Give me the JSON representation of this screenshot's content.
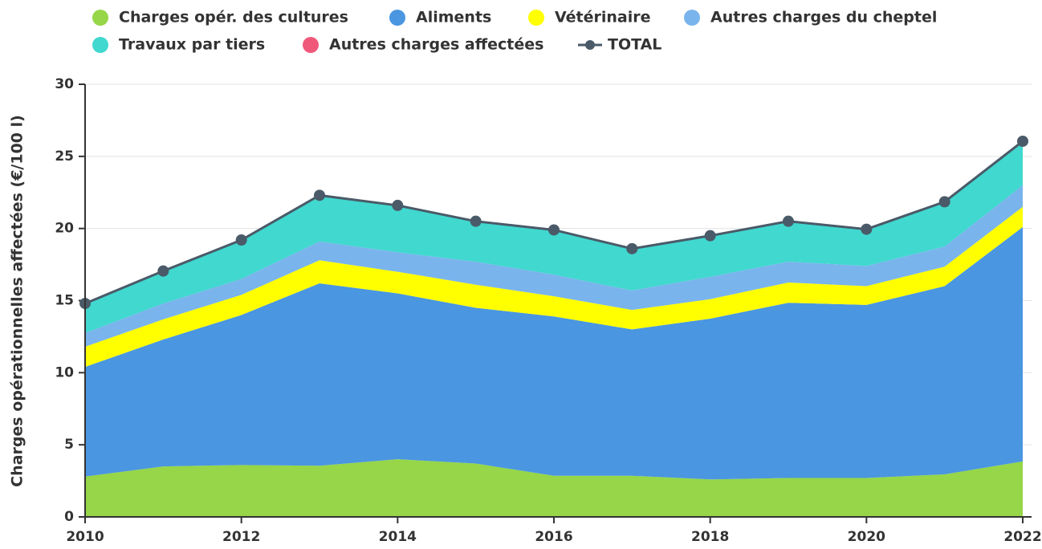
{
  "chart_data": {
    "type": "stacked_area",
    "y_label": "Charges opérationnelles affectées (€/100 l)",
    "x": [
      2010,
      2011,
      2012,
      2013,
      2014,
      2015,
      2016,
      2017,
      2018,
      2019,
      2020,
      2021,
      2022
    ],
    "xlim": [
      2010,
      2022
    ],
    "xticks": [
      2010,
      2012,
      2014,
      2016,
      2018,
      2020,
      2022
    ],
    "ylim": [
      0,
      30
    ],
    "yticks": [
      0,
      5,
      10,
      15,
      20,
      25,
      30
    ],
    "grid": true,
    "series": [
      {
        "name": "Charges opér. des cultures",
        "color": "#96d648",
        "values": [
          2.8,
          3.5,
          3.6,
          3.55,
          4.0,
          3.7,
          2.85,
          2.85,
          2.6,
          2.7,
          2.7,
          2.95,
          3.85
        ]
      },
      {
        "name": "Aliments",
        "color": "#4a96e0",
        "values": [
          7.6,
          8.8,
          10.4,
          12.65,
          11.5,
          10.8,
          11.05,
          10.15,
          11.15,
          12.15,
          12.0,
          13.05,
          16.25
        ]
      },
      {
        "name": "Vétérinaire",
        "color": "#ffff00",
        "values": [
          1.4,
          1.4,
          1.4,
          1.6,
          1.5,
          1.6,
          1.4,
          1.35,
          1.35,
          1.4,
          1.3,
          1.35,
          1.4
        ]
      },
      {
        "name": "Autres charges du cheptel",
        "color": "#7ab4ec",
        "values": [
          0.95,
          1.1,
          1.1,
          1.3,
          1.35,
          1.6,
          1.5,
          1.35,
          1.55,
          1.45,
          1.4,
          1.4,
          1.5
        ]
      },
      {
        "name": "Travaux par tiers",
        "color": "#40d8cf",
        "values": [
          2.05,
          2.25,
          2.7,
          3.2,
          3.25,
          2.8,
          3.1,
          2.9,
          2.85,
          2.8,
          2.55,
          3.1,
          3.05
        ]
      },
      {
        "name": "Autres charges affectées",
        "color": "#f0587a",
        "values": [
          0,
          0,
          0,
          0,
          0,
          0,
          0,
          0,
          0,
          0,
          0,
          0,
          0
        ]
      }
    ],
    "total": {
      "name": "TOTAL",
      "color": "#4a5a68",
      "values": [
        14.8,
        17.05,
        19.2,
        22.3,
        21.6,
        20.5,
        19.9,
        18.6,
        19.5,
        20.5,
        19.95,
        21.85,
        26.05
      ]
    }
  }
}
